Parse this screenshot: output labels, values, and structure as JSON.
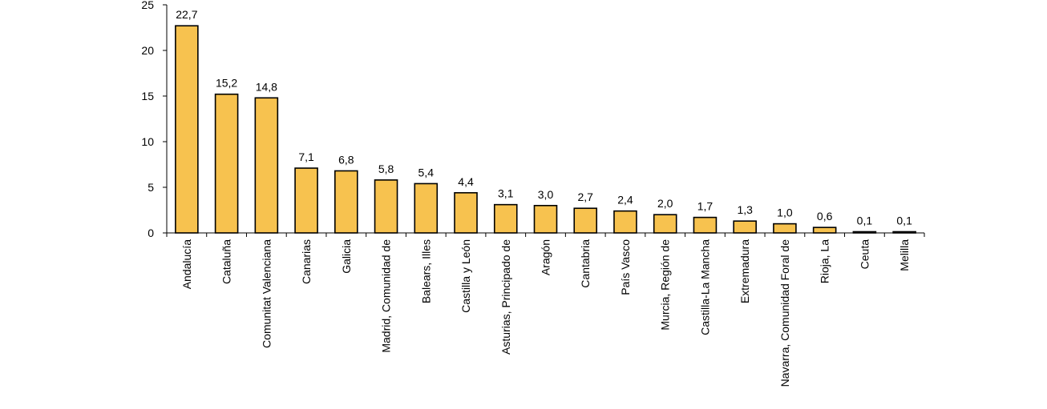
{
  "chart_data": {
    "type": "bar",
    "title": "",
    "xlabel": "",
    "ylabel": "",
    "ylim": [
      0,
      25
    ],
    "yticks": [
      0,
      5,
      10,
      15,
      20,
      25
    ],
    "grid": false,
    "legend": "none",
    "bar_color": "#F7C24F",
    "bar_stroke": "#000000",
    "categories": [
      "Andalucía",
      "Cataluña",
      "Comunitat Valenciana",
      "Canarias",
      "Galicia",
      "Madrid, Comunidad de",
      "Balears, Illes",
      "Castilla y León",
      "Asturias, Principado de",
      "Aragón",
      "Cantabria",
      "País Vasco",
      "Murcia, Región de",
      "Castilla-La Mancha",
      "Extremadura",
      "Navarra, Comunidad Foral de",
      "Rioja, La",
      "Ceuta",
      "Melilla"
    ],
    "values": [
      22.7,
      15.2,
      14.8,
      7.1,
      6.8,
      5.8,
      5.4,
      4.4,
      3.1,
      3.0,
      2.7,
      2.4,
      2.0,
      1.7,
      1.3,
      1.0,
      0.6,
      0.1,
      0.1
    ],
    "value_labels": [
      "22,7",
      "15,2",
      "14,8",
      "7,1",
      "6,8",
      "5,8",
      "5,4",
      "4,4",
      "3,1",
      "3,0",
      "2,7",
      "2,4",
      "2,0",
      "1,7",
      "1,3",
      "1,0",
      "0,6",
      "0,1",
      "0,1"
    ]
  }
}
